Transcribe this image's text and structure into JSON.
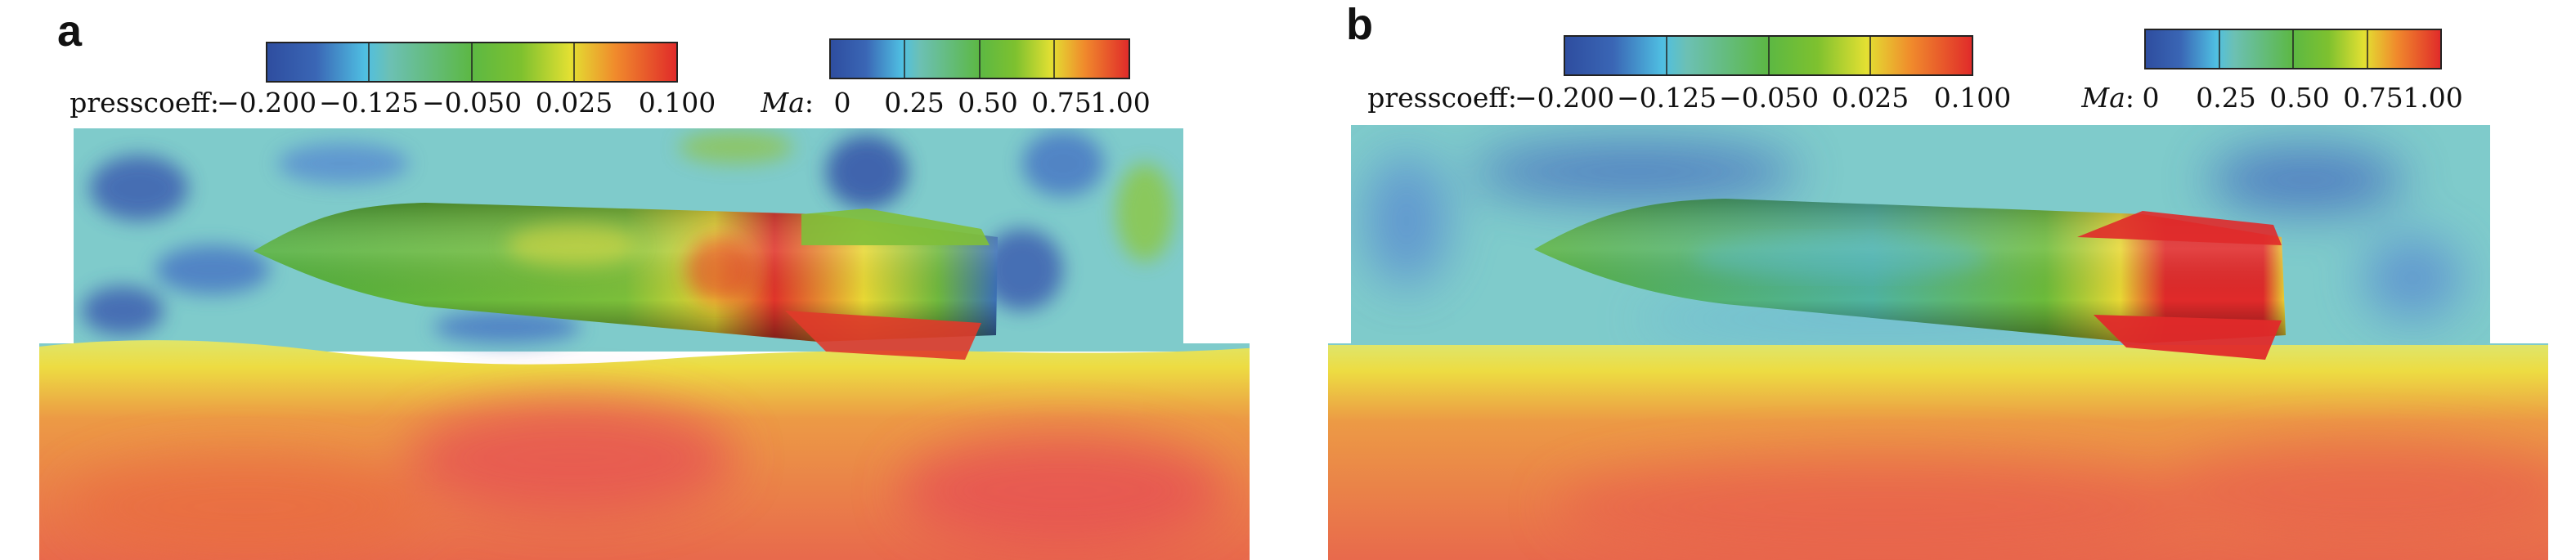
{
  "colors": {
    "scale": [
      "#2e4d9f",
      "#4fbfe2",
      "#5cb843",
      "#7ec12f",
      "#e3e032",
      "#f08a2c",
      "#e02a2a"
    ],
    "freestream": "#7fcbcb",
    "water_top": "#e9e24a",
    "water_bottom": "#e8684c",
    "hull_green": "#5fb33c"
  },
  "panels": [
    {
      "label": "a",
      "presscoeff": {
        "name": "presscoeff:",
        "ticks": [
          "−0.200",
          "−0.125",
          "−0.050",
          "0.025",
          "0.100"
        ]
      },
      "ma": {
        "name": "Ma",
        "sep": ":",
        "ticks": [
          "0",
          "0.25",
          "0.50",
          "0.75",
          "1.00"
        ]
      }
    },
    {
      "label": "b",
      "presscoeff": {
        "name": "presscoeff:",
        "ticks": [
          "−0.200",
          "−0.125",
          "−0.050",
          "0.025",
          "0.100"
        ]
      },
      "ma": {
        "name": "Ma",
        "sep": ":",
        "ticks": [
          "0",
          "0.25",
          "0.50",
          "0.75",
          "1.00"
        ]
      }
    }
  ]
}
